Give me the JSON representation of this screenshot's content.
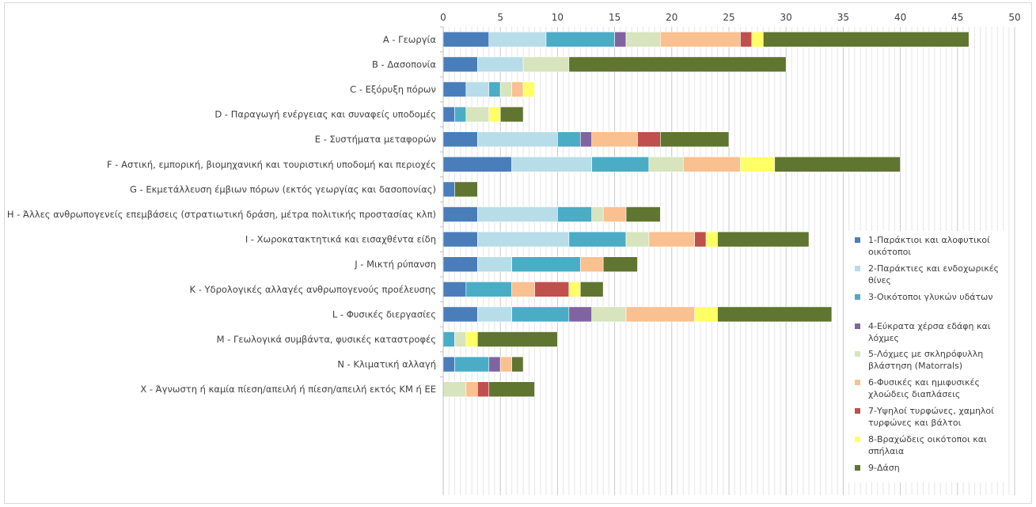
{
  "chart_data": {
    "type": "bar",
    "orientation": "horizontal",
    "stacked": true,
    "xlim": [
      0,
      50
    ],
    "x_ticks": [
      "0",
      "5",
      "10",
      "15",
      "20",
      "25",
      "30",
      "35",
      "40",
      "45",
      "50"
    ],
    "x_axis_position": "top",
    "grid": true,
    "legend_position": "right",
    "categories": [
      "A - Γεωργία",
      "B - Δασοπονία",
      "C - Εξόρυξη πόρων",
      "D - Παραγωγή ενέργειας και συναφείς υποδομές",
      "E - Συστήματα μεταφορών",
      "F - Αστική, εμπορική, βιομηχανική και τουριστική υποδομή και περιοχές",
      "G - Εκμετάλλευση έμβιων πόρων (εκτός γεωργίας και δασοπονίας)",
      "H - Άλλες ανθρωπογενείς επεμβάσεις (στρατιωτική δράση, μέτρα πολιτικής προστασίας κλπ)",
      "I - Χωροκατακτητικά και εισαχθέντα είδη",
      "J - Μικτή ρύπανση",
      "K - Υδρολογικές αλλαγές ανθρωπογενούς προέλευσης",
      "L - Φυσικές διεργασίες",
      "M - Γεωλογικά συμβάντα, φυσικές καταστροφές",
      "N - Κλιματική αλλαγή",
      "X - Άγνωστη ή καμία πίεση/απειλή ή πίεση/απειλή εκτός ΚΜ ή ΕΕ"
    ],
    "series": [
      {
        "name": "1-Παράκτιοι και αλοφυτικοί οικότοποι",
        "color": "#4a7ebb",
        "values": [
          4,
          3,
          2,
          1,
          3,
          6,
          1,
          3,
          3,
          3,
          2,
          3,
          0,
          1,
          0
        ]
      },
      {
        "name": "2-Παράκτιες και ενδοχωρικές θίνες",
        "color": "#b7dde8",
        "values": [
          5,
          4,
          2,
          0,
          7,
          7,
          0,
          7,
          8,
          3,
          0,
          3,
          0,
          0,
          0
        ]
      },
      {
        "name": "3-Οικότοποι γλυκών υδάτων",
        "color": "#4bacc6",
        "values": [
          6,
          0,
          1,
          1,
          2,
          5,
          0,
          3,
          5,
          6,
          4,
          5,
          1,
          3,
          0
        ]
      },
      {
        "name": "4-Εύκρατα χέρσα εδάφη και λόχμες",
        "color": "#8064a2",
        "values": [
          1,
          0,
          0,
          0,
          1,
          0,
          0,
          0,
          0,
          0,
          0,
          2,
          0,
          1,
          0
        ]
      },
      {
        "name": "5-Λόχμες με σκληρόφυλλη βλάστηση (Matorrals)",
        "color": "#d7e4bd",
        "values": [
          3,
          4,
          1,
          2,
          0,
          3,
          0,
          1,
          2,
          0,
          0,
          3,
          1,
          0,
          2
        ]
      },
      {
        "name": "6-Φυσικές και ημιφυσικές χλοώδεις διαπλάσεις",
        "color": "#fac090",
        "values": [
          7,
          0,
          1,
          0,
          4,
          5,
          0,
          2,
          4,
          2,
          2,
          6,
          0,
          1,
          1
        ]
      },
      {
        "name": "7-Υψηλοί τυρφώνες, χαμηλοί τυρφώνες και βάλτοι",
        "color": "#c0504d",
        "values": [
          1,
          0,
          0,
          0,
          2,
          0,
          0,
          0,
          1,
          0,
          3,
          0,
          0,
          0,
          1
        ]
      },
      {
        "name": "8-Βραχώδεις οικότοποι και σπήλαια",
        "color": "#ffff66",
        "values": [
          1,
          0,
          1,
          1,
          0,
          3,
          0,
          0,
          1,
          0,
          1,
          2,
          1,
          0,
          0
        ]
      },
      {
        "name": "9-Δάση",
        "color": "#5f7530",
        "values": [
          18,
          19,
          0,
          2,
          6,
          11,
          2,
          3,
          8,
          3,
          2,
          10,
          7,
          1,
          4
        ]
      }
    ]
  }
}
